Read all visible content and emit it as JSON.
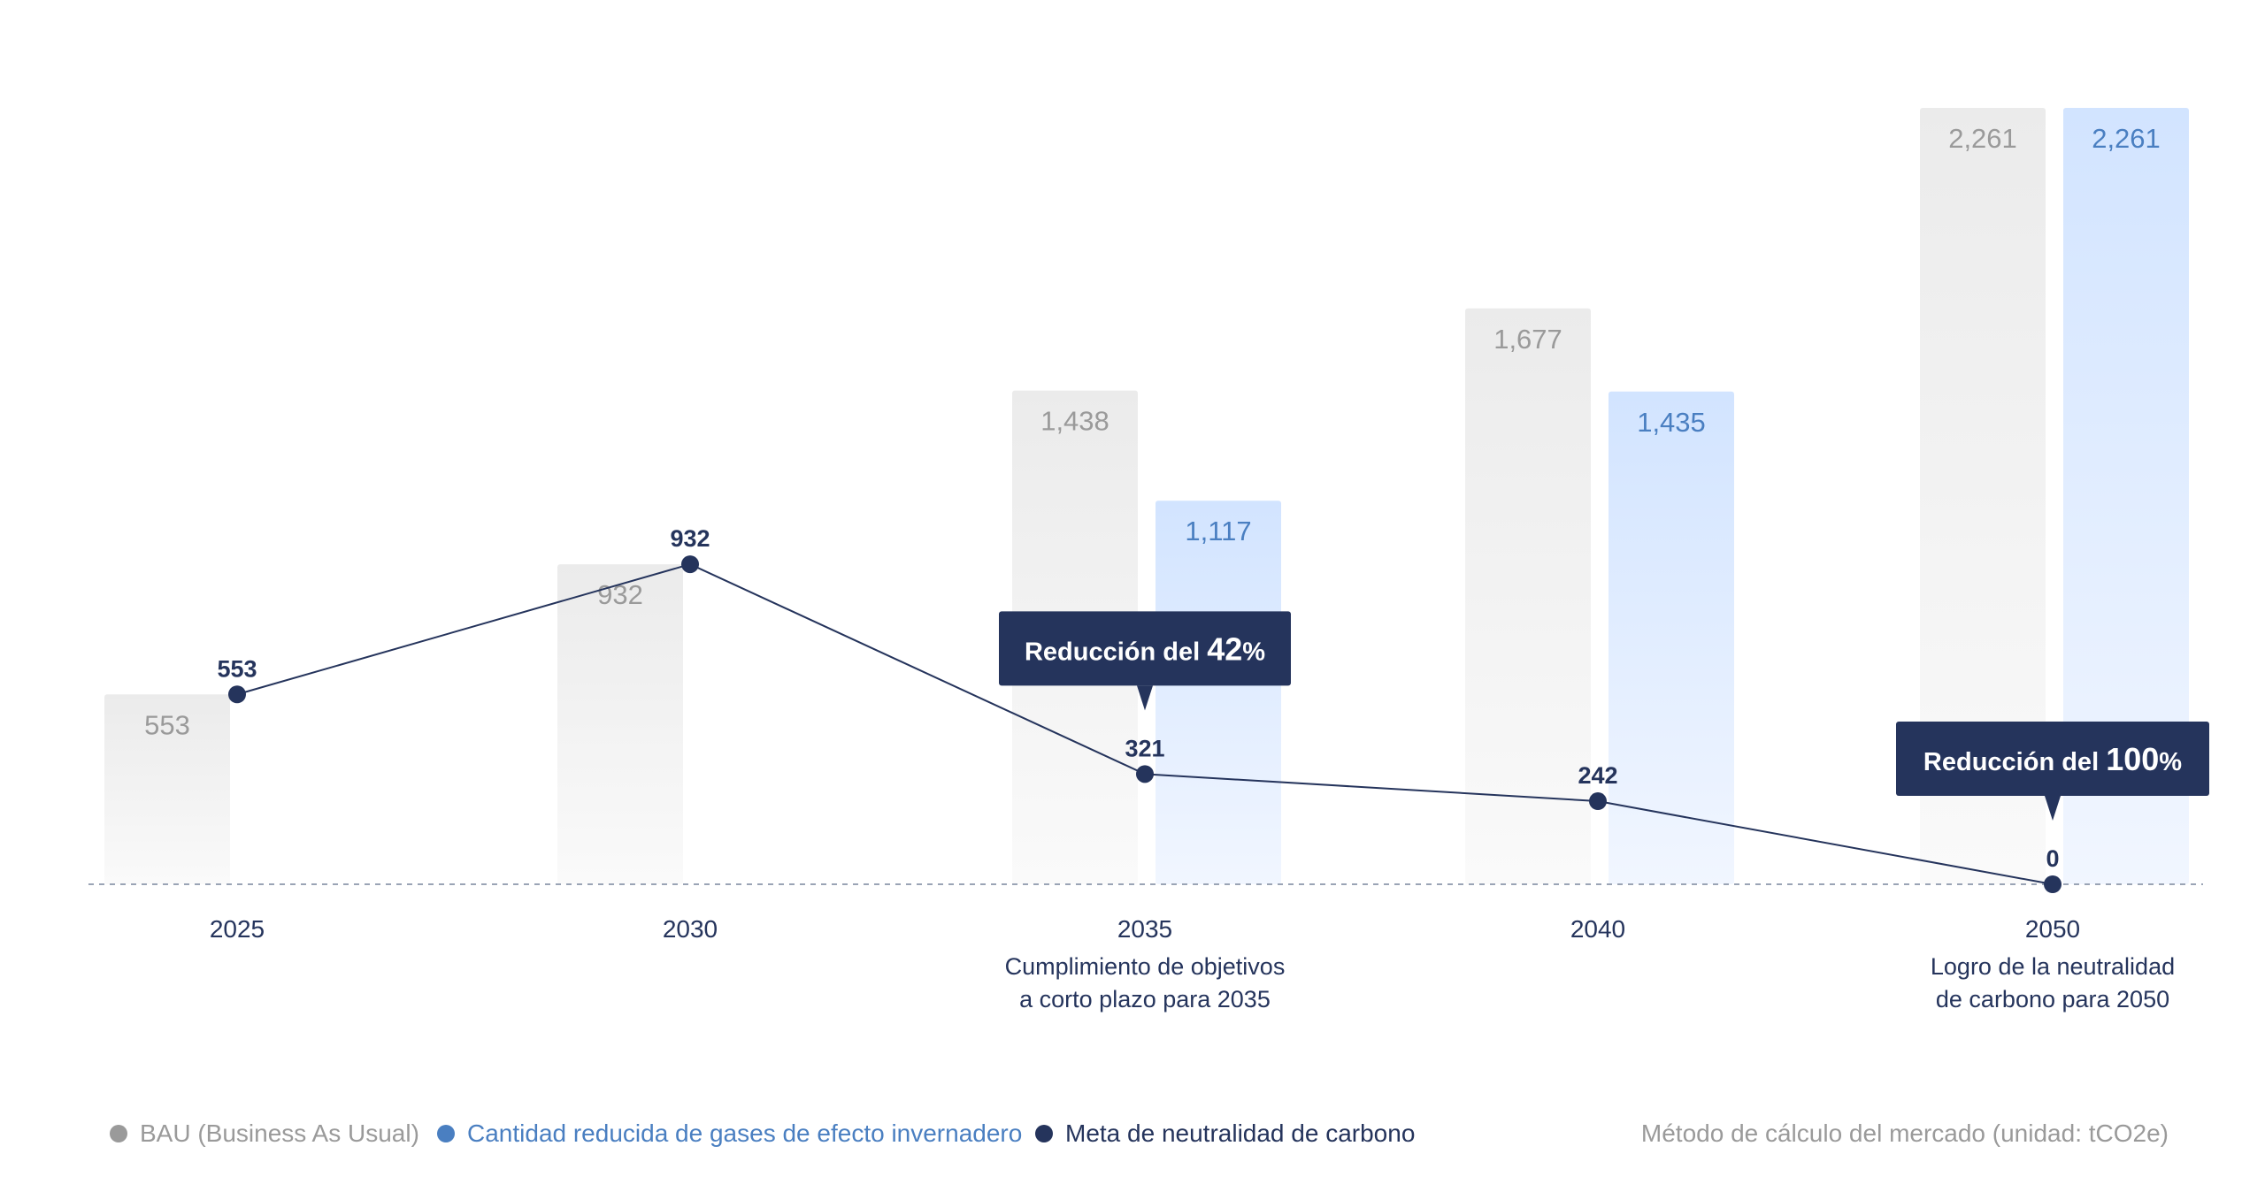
{
  "colors": {
    "bau_bar": "#eeeeee",
    "bau_text": "#9a9a9a",
    "reduced_bar": "#d4e6ff",
    "reduced_text": "#4a7fc1",
    "target": "#25345c",
    "axis": "#9aa4b5",
    "year_text": "#25345c"
  },
  "chart_data": {
    "type": "bar",
    "categories": [
      "2025",
      "2030",
      "2035",
      "2040",
      "2050"
    ],
    "series": [
      {
        "name": "BAU (Business As Usual)",
        "type": "bar",
        "values": [
          553,
          932,
          1438,
          1677,
          2261
        ],
        "value_labels": [
          "553",
          "932",
          "1,438",
          "1,677",
          "2,261"
        ]
      },
      {
        "name": "Cantidad reducida de gases de efecto invernadero",
        "type": "bar",
        "values": [
          null,
          null,
          1117,
          1435,
          2261
        ],
        "value_labels": [
          "",
          "",
          "1,117",
          "1,435",
          "2,261"
        ]
      },
      {
        "name": "Meta de neutralidad de carbono",
        "type": "line",
        "values": [
          553,
          932,
          321,
          242,
          0
        ],
        "value_labels": [
          "553",
          "932",
          "321",
          "242",
          "0"
        ]
      }
    ],
    "ylim": [
      0,
      2261
    ],
    "grid": false,
    "baseline": "dashed",
    "category_notes": [
      [],
      [],
      [
        "Cumplimiento de objetivos",
        "a corto plazo para 2035"
      ],
      [],
      [
        "Logro de la neutralidad",
        "de carbono para 2050"
      ]
    ],
    "callouts": [
      {
        "category": "2035",
        "prefix": "Reducción del ",
        "number": "42",
        "suffix": "%"
      },
      {
        "category": "2050",
        "prefix": "Reducción del ",
        "number": "100",
        "suffix": "%"
      }
    ],
    "legend": {
      "items": [
        {
          "label": "BAU (Business As Usual)",
          "color_key": "bau_text"
        },
        {
          "label": "Cantidad reducida de gases de efecto invernadero",
          "color_key": "reduced_text"
        },
        {
          "label": "Meta de neutralidad de carbono",
          "color_key": "target"
        }
      ],
      "note": "Método de cálculo del mercado (unidad: tCO2e)",
      "placement": "bottom-left"
    }
  }
}
